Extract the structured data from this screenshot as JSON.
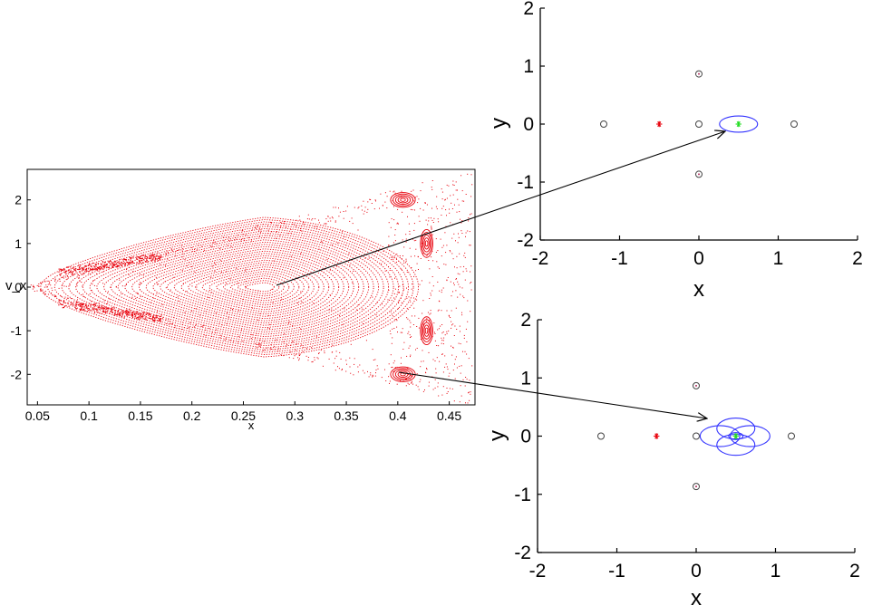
{
  "chart_data": [
    {
      "type": "scatter",
      "title": "",
      "xlabel": "x",
      "ylabel": "v_x",
      "xlim": [
        0.04,
        0.475
      ],
      "ylim": [
        -2.7,
        2.7
      ],
      "xticks": [
        "0.05",
        "0.1",
        "0.15",
        "0.2",
        "0.25",
        "0.3",
        "0.35",
        "0.4",
        "0.45"
      ],
      "yticks": [
        "2",
        "1",
        "0",
        "-1",
        "-2"
      ],
      "series_color": "#e8000b",
      "description_points": {
        "central_island_center": [
          0.27,
          0.0
        ],
        "island_upper": [
          0.405,
          2.0
        ],
        "island_lower": [
          0.405,
          -2.0
        ],
        "island_right_upper": [
          0.428,
          1.0
        ],
        "island_right_lower": [
          0.428,
          -1.0
        ]
      }
    },
    {
      "type": "scatter",
      "title": "",
      "xlabel": "x",
      "ylabel": "y",
      "xlim": [
        -2,
        2
      ],
      "ylim": [
        -2,
        2
      ],
      "xticks": [
        "-2",
        "-1",
        "0",
        "1",
        "2"
      ],
      "yticks": [
        "2",
        "1",
        "0",
        "-1",
        "-2"
      ],
      "open_circles": [
        [
          -1.2,
          0
        ],
        [
          0,
          0
        ],
        [
          1.2,
          0
        ],
        [
          0,
          0.866
        ],
        [
          0,
          -0.866
        ]
      ],
      "red_star": [
        -0.5,
        0
      ],
      "green_star": [
        0.5,
        0
      ],
      "orbit_ellipses": [
        {
          "cx": 0.5,
          "cy": 0,
          "rx": 0.24,
          "ry": 0.14
        }
      ]
    },
    {
      "type": "scatter",
      "title": "",
      "xlabel": "x",
      "ylabel": "y",
      "xlim": [
        -2,
        2
      ],
      "ylim": [
        -2,
        2
      ],
      "xticks": [
        "-2",
        "-1",
        "0",
        "1",
        "2"
      ],
      "yticks": [
        "2",
        "1",
        "0",
        "-1",
        "-2"
      ],
      "open_circles": [
        [
          -1.2,
          0
        ],
        [
          0,
          0
        ],
        [
          1.2,
          0
        ],
        [
          0,
          0.866
        ],
        [
          0,
          -0.866
        ]
      ],
      "red_star": [
        -0.5,
        0
      ],
      "green_star": [
        0.5,
        0
      ],
      "orbit_ellipses": [
        {
          "cx": 0.5,
          "cy": 0.13,
          "rx": 0.24,
          "ry": 0.18
        },
        {
          "cx": 0.3,
          "cy": 0.0,
          "rx": 0.25,
          "ry": 0.18
        },
        {
          "cx": 0.68,
          "cy": 0.0,
          "rx": 0.25,
          "ry": 0.18
        },
        {
          "cx": 0.5,
          "cy": -0.15,
          "rx": 0.24,
          "ry": 0.18
        },
        {
          "cx": 0.5,
          "cy": 0.0,
          "rx": 0.09,
          "ry": 0.06
        }
      ]
    }
  ],
  "colors": {
    "axis": "#000000",
    "scatter": "#e8000b",
    "orbit": "#3333ff",
    "green_star": "#22dd22",
    "red_star": "#e8000b",
    "circle": "#444444",
    "circle_dot": "#b03060"
  }
}
